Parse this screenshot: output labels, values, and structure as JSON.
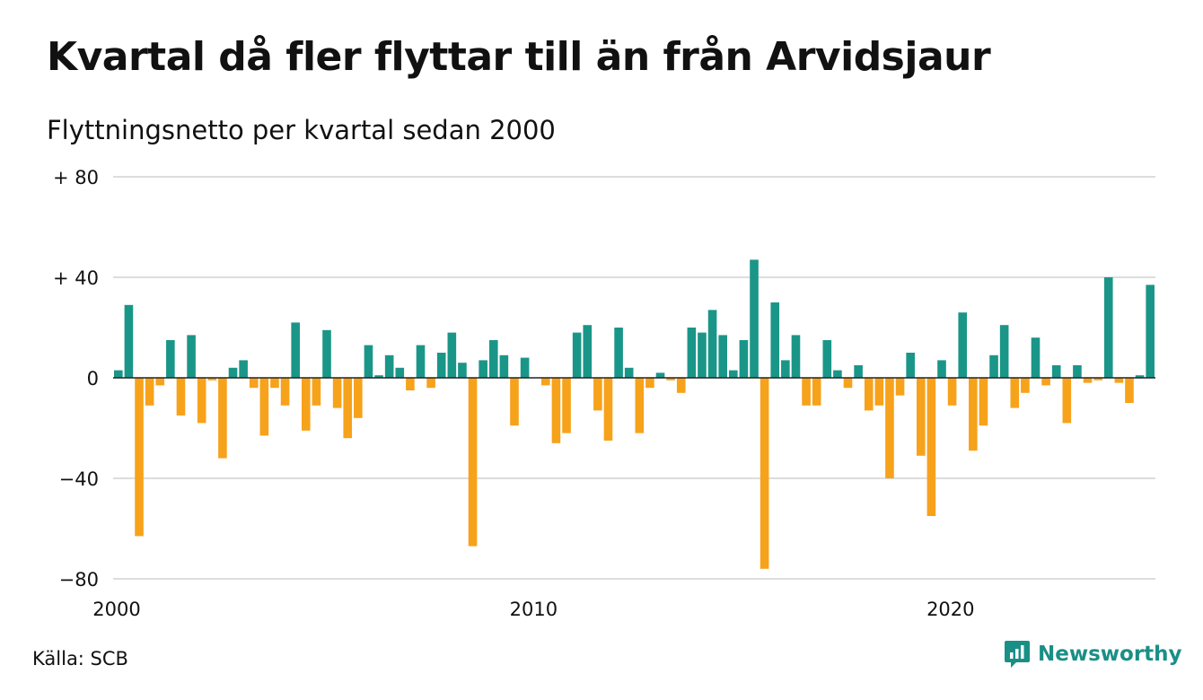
{
  "title": "Kvartal då fler flyttar till än från Arvidsjaur",
  "subtitle": "Flyttningsnetto per kvartal sedan 2000",
  "source": "Källa: SCB",
  "brand": "Newsworthy",
  "colors": {
    "positive": "#1a9688",
    "negative": "#f7a21b",
    "grid": "#dddddd",
    "brand": "#1a8f86"
  },
  "chart_data": {
    "type": "bar",
    "title": "Kvartal då fler flyttar till än från Arvidsjaur",
    "subtitle": "Flyttningsnetto per kvartal sedan 2000",
    "ylim": [
      -80,
      80
    ],
    "yticks": [
      80,
      40,
      0,
      -40,
      -80
    ],
    "ytick_labels": [
      "+ 80",
      "+ 40",
      "0",
      "−40",
      "−80"
    ],
    "xticks": [
      2000,
      2010,
      2020
    ],
    "xtick_labels": [
      "2000",
      "2010",
      "2020"
    ],
    "first_quarter": "2000-Q1",
    "grid": true,
    "values": [
      3,
      29,
      -63,
      -11,
      -3,
      15,
      -15,
      17,
      -18,
      -1,
      -32,
      4,
      7,
      -4,
      -23,
      -4,
      -11,
      22,
      -21,
      -11,
      19,
      -12,
      -24,
      -16,
      13,
      1,
      9,
      4,
      -5,
      13,
      -4,
      10,
      18,
      6,
      -67,
      7,
      15,
      9,
      -19,
      8,
      0,
      -3,
      -26,
      -22,
      18,
      21,
      -13,
      -25,
      20,
      4,
      -22,
      -4,
      2,
      -1,
      -6,
      20,
      18,
      27,
      17,
      3,
      15,
      47,
      -76,
      30,
      7,
      17,
      -11,
      -11,
      15,
      3,
      -4,
      5,
      -13,
      -11,
      -40,
      -7,
      10,
      -31,
      -55,
      7,
      -11,
      26,
      -29,
      -19,
      9,
      21,
      -12,
      -6,
      16,
      -3,
      5,
      -18,
      5,
      -2,
      -1,
      40,
      -2,
      -10,
      1,
      37
    ]
  }
}
